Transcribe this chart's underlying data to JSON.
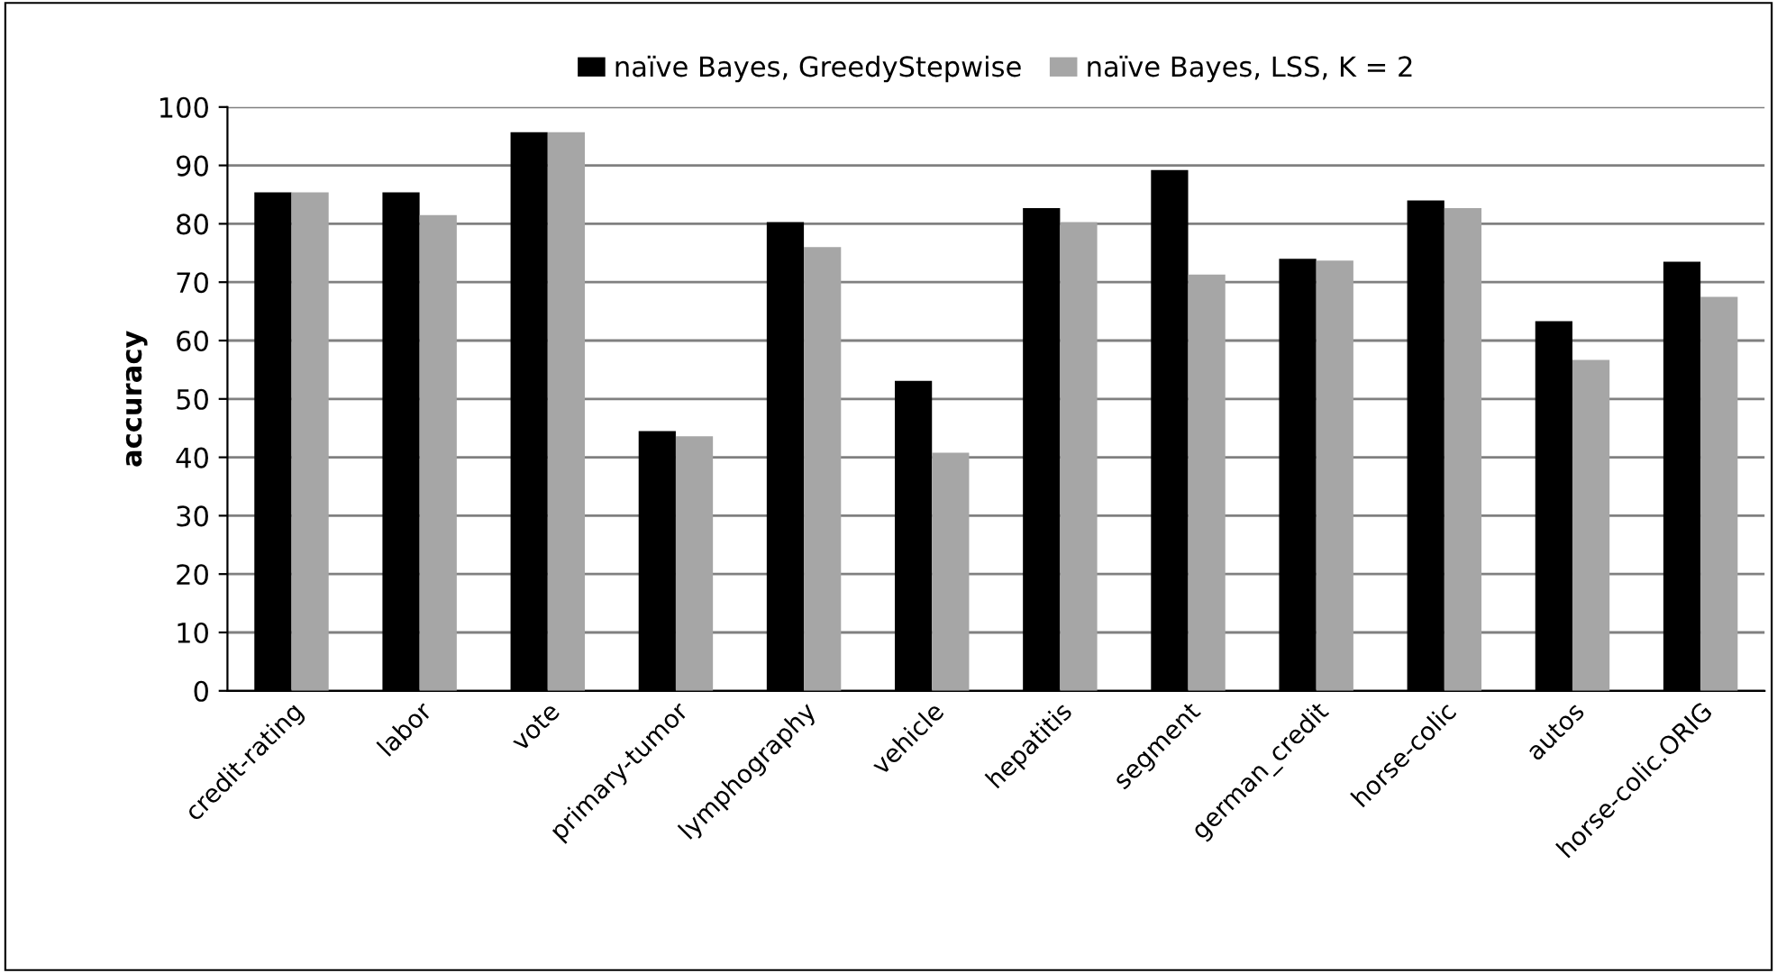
{
  "chart_data": {
    "type": "bar",
    "ylabel": "accuracy",
    "categories": [
      "credit-rating",
      "labor",
      "vote",
      "primary-tumor",
      "lymphography",
      "vehicle",
      "hepatitis",
      "segment",
      "german_credit",
      "horse-colic",
      "autos",
      "horse-colic.ORIG"
    ],
    "series": [
      {
        "name": "naïve Bayes, GreedyStepwise",
        "color": "#000000",
        "values": [
          85.4,
          85.4,
          95.7,
          44.5,
          80.3,
          53.1,
          82.7,
          89.2,
          74.0,
          84.0,
          63.3,
          73.5
        ]
      },
      {
        "name": "naïve Bayes, LSS, K = 2",
        "color": "#a6a6a6",
        "values": [
          85.4,
          81.5,
          95.7,
          43.6,
          76.0,
          40.8,
          80.3,
          71.3,
          73.7,
          82.7,
          56.7,
          67.5
        ]
      }
    ],
    "ylim": [
      0,
      100
    ],
    "yticks": [
      0,
      10,
      20,
      30,
      40,
      50,
      60,
      70,
      80,
      90,
      100
    ],
    "grid": "y",
    "legend": "top"
  }
}
